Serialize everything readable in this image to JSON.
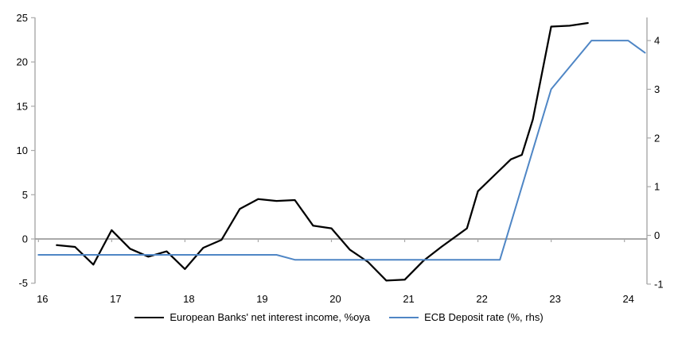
{
  "chart_data": {
    "type": "line",
    "title": "",
    "x_axis": {
      "tick_labels": [
        "16",
        "17",
        "18",
        "19",
        "20",
        "21",
        "22",
        "23",
        "24"
      ],
      "tick_years": [
        16,
        17,
        18,
        19,
        20,
        21,
        22,
        23,
        24
      ],
      "range": [
        16,
        24.35
      ],
      "crosses_at": 0
    },
    "left_axis": {
      "tick_labels": [
        "25",
        "20",
        "15",
        "10",
        "5",
        "0",
        "-5"
      ],
      "tick_values": [
        25,
        20,
        15,
        10,
        5,
        0,
        -5
      ],
      "range": [
        -5,
        25
      ]
    },
    "right_axis": {
      "tick_labels": [
        "4",
        "3",
        "2",
        "1",
        "0",
        "-1"
      ],
      "tick_values": [
        4,
        3,
        2,
        1,
        0,
        -1
      ],
      "range": [
        -1,
        4.5
      ]
    },
    "grid": false,
    "legend_position": "bottom",
    "series": [
      {
        "name": "European Banks' net interest income, %oya",
        "axis": "left",
        "color": "#000000",
        "points": [
          [
            16.25,
            -0.7
          ],
          [
            16.5,
            -0.9
          ],
          [
            16.75,
            -2.9
          ],
          [
            17.0,
            1.0
          ],
          [
            17.25,
            -1.1
          ],
          [
            17.5,
            -2.0
          ],
          [
            17.75,
            -1.4
          ],
          [
            18.0,
            -3.4
          ],
          [
            18.25,
            -1.0
          ],
          [
            18.5,
            -0.1
          ],
          [
            18.75,
            3.4
          ],
          [
            19.0,
            4.5
          ],
          [
            19.25,
            4.3
          ],
          [
            19.5,
            4.4
          ],
          [
            19.75,
            1.5
          ],
          [
            20.0,
            1.2
          ],
          [
            20.25,
            -1.2
          ],
          [
            20.5,
            -2.6
          ],
          [
            20.75,
            -4.7
          ],
          [
            21.0,
            -4.6
          ],
          [
            21.25,
            -2.5
          ],
          [
            21.5,
            -0.9
          ],
          [
            21.75,
            0.6
          ],
          [
            21.85,
            1.2
          ],
          [
            22.0,
            5.4
          ],
          [
            22.25,
            7.4
          ],
          [
            22.45,
            9.0
          ],
          [
            22.6,
            9.5
          ],
          [
            22.75,
            13.5
          ],
          [
            23.0,
            24.0
          ],
          [
            23.25,
            24.1
          ],
          [
            23.5,
            24.4
          ]
        ]
      },
      {
        "name": "ECB Deposit rate (%, rhs)",
        "axis": "right",
        "color": "#4f86c5",
        "points": [
          [
            16.0,
            -0.4
          ],
          [
            19.25,
            -0.4
          ],
          [
            19.5,
            -0.5
          ],
          [
            22.3,
            -0.5
          ],
          [
            23.0,
            3.0
          ],
          [
            23.55,
            4.0
          ],
          [
            24.05,
            4.0
          ],
          [
            24.28,
            3.75
          ]
        ]
      }
    ]
  },
  "colors": {
    "background": "#ffffff",
    "axis_line": "#a9a9a9",
    "zero_line": "#9d9d9d",
    "text": "#000000",
    "nii_line": "#000000",
    "deposit_line": "#4f86c5"
  }
}
